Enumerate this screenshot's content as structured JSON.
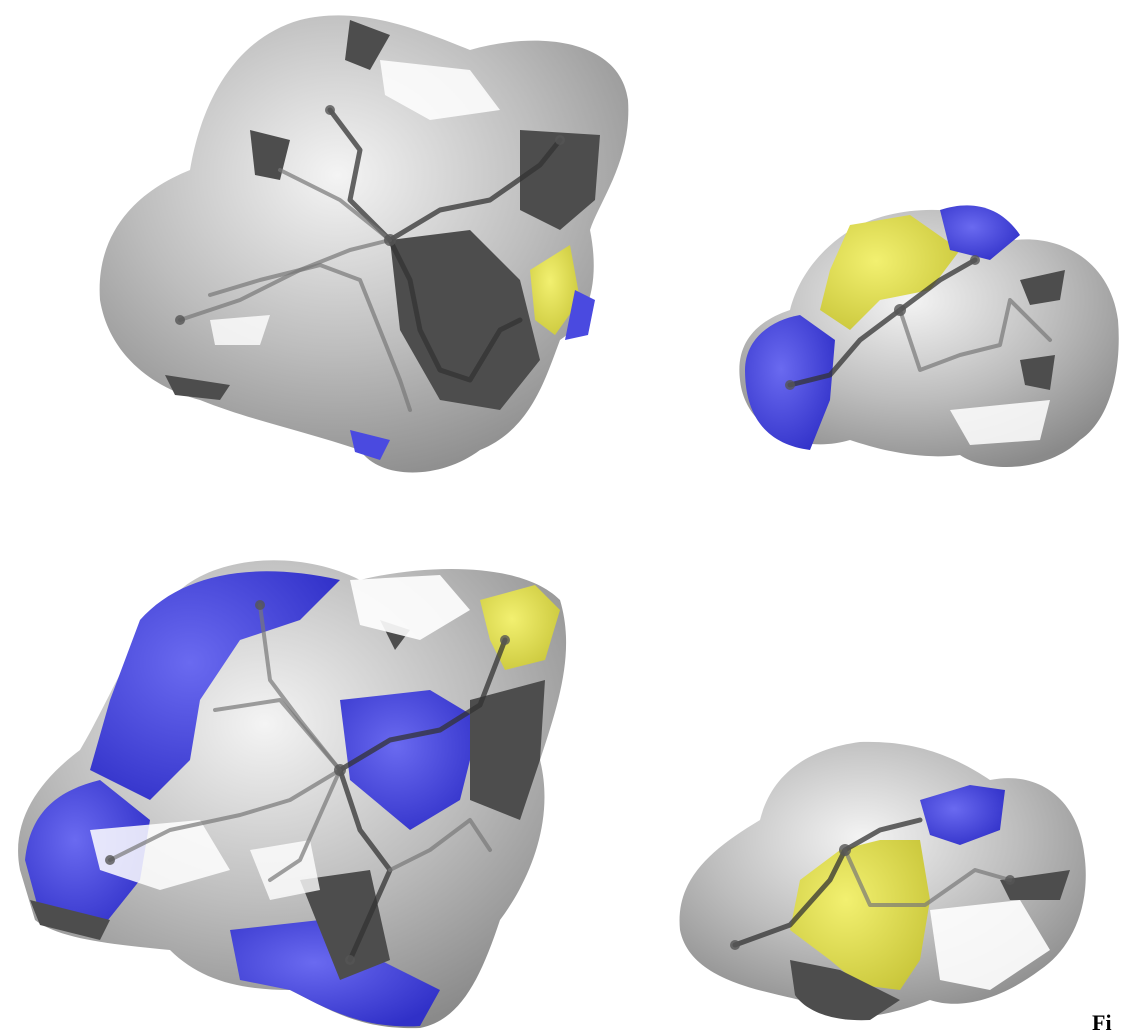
{
  "caption": "Fi"
}
